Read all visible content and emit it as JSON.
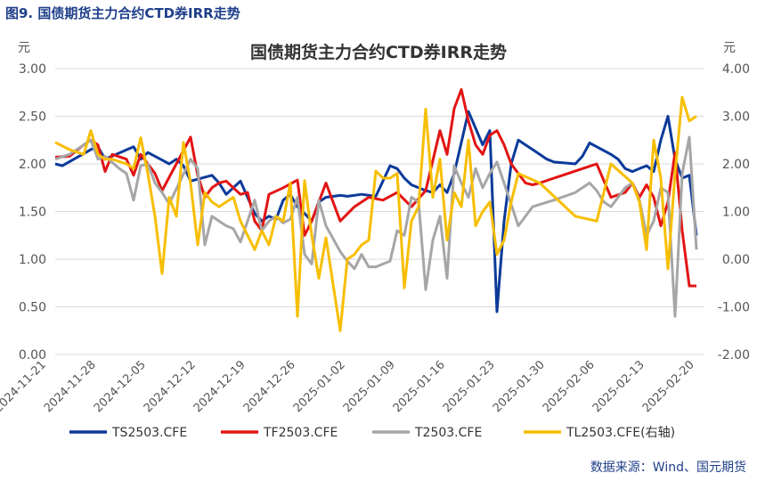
{
  "caption": "图9. 国债期货主力合约CTD券IRR走势",
  "source": "数据来源：Wind、国元期货",
  "chart_data": {
    "type": "line",
    "title": "国债期货主力合约CTD券IRR走势",
    "ylabel_left": "元",
    "ylabel_right": "元",
    "ylim_left": [
      0,
      3
    ],
    "ylim_right": [
      -2,
      4
    ],
    "yticks_left": [
      "0.00",
      "0.50",
      "1.00",
      "1.50",
      "2.00",
      "2.50",
      "3.00"
    ],
    "yticks_right": [
      "-2.00",
      "-1.00",
      "0.00",
      "1.00",
      "2.00",
      "3.00",
      "4.00"
    ],
    "xticks": [
      "2024-11-21",
      "2024-11-28",
      "2024-12-05",
      "2024-12-12",
      "2024-12-19",
      "2024-12-26",
      "2025-01-02",
      "2025-01-09",
      "2025-01-16",
      "2025-01-23",
      "2025-01-30",
      "2025-02-06",
      "2025-02-13",
      "2025-02-20"
    ],
    "x_range": [
      0,
      91
    ],
    "legend_position": "bottom",
    "series": [
      {
        "name": "TS2503.CFE",
        "color": "#0b3a9a",
        "axis": "left",
        "x": [
          0,
          1,
          5,
          6,
          7,
          11,
          12,
          13,
          15,
          16,
          17,
          18,
          19,
          22,
          23,
          24,
          26,
          27,
          28,
          29,
          30,
          31,
          32,
          33,
          34,
          35,
          36,
          37,
          38,
          40,
          41,
          42,
          43,
          45,
          47,
          48,
          49,
          50,
          51,
          52,
          53,
          54,
          55,
          56,
          58,
          60,
          61,
          62,
          63,
          64,
          65,
          66,
          67,
          68,
          69,
          70,
          73,
          74,
          75,
          78,
          79,
          80,
          81,
          82,
          83,
          84,
          85,
          86,
          87,
          88,
          89,
          90
        ],
        "y": [
          2.0,
          1.98,
          2.15,
          2.18,
          2.05,
          2.18,
          2.05,
          2.12,
          2.04,
          2.0,
          2.05,
          1.98,
          1.82,
          1.88,
          1.8,
          1.68,
          1.82,
          1.65,
          1.48,
          1.4,
          1.45,
          1.42,
          1.62,
          1.68,
          1.55,
          1.48,
          1.4,
          1.6,
          1.65,
          1.67,
          1.66,
          1.67,
          1.68,
          1.66,
          1.98,
          1.95,
          1.85,
          1.78,
          1.75,
          1.72,
          1.7,
          1.78,
          1.7,
          1.9,
          2.55,
          2.2,
          2.35,
          0.45,
          1.4,
          2.0,
          2.25,
          2.2,
          2.15,
          2.1,
          2.05,
          2.02,
          2.0,
          2.08,
          2.22,
          2.1,
          2.05,
          1.95,
          1.92,
          1.95,
          1.98,
          1.92,
          2.25,
          2.5,
          2.05,
          1.85,
          1.88,
          1.25
        ]
      },
      {
        "name": "TF2503.CFE",
        "color": "#e31414",
        "axis": "left",
        "x": [
          0,
          2,
          4,
          5,
          6,
          7,
          8,
          10,
          11,
          12,
          14,
          15,
          19,
          20,
          21,
          22,
          23,
          24,
          25,
          26,
          27,
          28,
          29,
          30,
          32,
          34,
          35,
          36,
          38,
          40,
          42,
          44,
          46,
          48,
          50,
          52,
          54,
          55,
          56,
          57,
          58,
          59,
          60,
          61,
          62,
          63,
          64,
          66,
          67,
          68,
          70,
          72,
          74,
          76,
          78,
          80,
          81,
          82,
          83,
          84,
          85,
          86,
          87,
          88,
          89,
          90
        ],
        "y": [
          2.07,
          2.08,
          2.2,
          2.25,
          2.2,
          1.92,
          2.1,
          2.05,
          1.88,
          2.1,
          1.9,
          1.72,
          2.28,
          1.88,
          1.65,
          1.75,
          1.8,
          1.82,
          1.75,
          1.68,
          1.7,
          1.4,
          1.3,
          1.68,
          1.75,
          1.83,
          1.25,
          1.4,
          1.8,
          1.4,
          1.55,
          1.65,
          1.62,
          1.7,
          1.55,
          1.72,
          2.35,
          2.1,
          2.58,
          2.78,
          2.45,
          2.2,
          2.1,
          2.3,
          2.35,
          2.2,
          2.0,
          1.8,
          1.78,
          1.8,
          1.85,
          1.9,
          1.95,
          2.0,
          1.65,
          1.7,
          1.8,
          1.65,
          1.78,
          1.65,
          1.35,
          1.6,
          2.12,
          1.3,
          0.72,
          0.72
        ]
      },
      {
        "name": "T2503.CFE",
        "color": "#a6a6a6",
        "axis": "left",
        "x": [
          0,
          2,
          4,
          5,
          6,
          7,
          9,
          10,
          11,
          12,
          13,
          14,
          15,
          16,
          19,
          20,
          21,
          22,
          23,
          24,
          25,
          26,
          28,
          29,
          30,
          31,
          32,
          33,
          34,
          35,
          36,
          37,
          38,
          40,
          41,
          42,
          43,
          44,
          45,
          46,
          47,
          48,
          49,
          50,
          51,
          52,
          53,
          54,
          55,
          56,
          57,
          58,
          59,
          60,
          61,
          62,
          63,
          65,
          67,
          70,
          73,
          75,
          76,
          77,
          78,
          79,
          80,
          81,
          82,
          83,
          84,
          85,
          86,
          87,
          88,
          89,
          90
        ],
        "y": [
          2.05,
          2.1,
          2.2,
          2.25,
          2.05,
          2.08,
          1.95,
          1.9,
          1.62,
          1.98,
          2.0,
          1.8,
          1.7,
          1.58,
          2.05,
          1.95,
          1.15,
          1.45,
          1.4,
          1.35,
          1.32,
          1.18,
          1.62,
          1.3,
          1.4,
          1.45,
          1.38,
          1.42,
          1.65,
          1.05,
          0.95,
          1.62,
          1.35,
          1.08,
          0.98,
          0.9,
          1.05,
          0.92,
          0.92,
          0.95,
          0.98,
          1.3,
          1.25,
          1.65,
          1.6,
          0.68,
          1.2,
          1.45,
          0.8,
          1.98,
          1.8,
          1.65,
          1.95,
          1.75,
          1.9,
          2.02,
          1.8,
          1.35,
          1.55,
          1.62,
          1.7,
          1.8,
          1.72,
          1.6,
          1.55,
          1.65,
          1.75,
          1.8,
          1.62,
          1.25,
          1.4,
          1.75,
          1.7,
          0.4,
          1.9,
          2.28,
          1.1
        ]
      },
      {
        "name": "TL2503.CFE(右轴)",
        "color": "#f7be00",
        "axis": "right",
        "x": [
          0,
          2,
          4,
          5,
          6,
          7,
          8,
          10,
          11,
          12,
          13,
          14,
          15,
          16,
          17,
          18,
          19,
          20,
          21,
          22,
          23,
          24,
          25,
          26,
          28,
          29,
          30,
          31,
          32,
          33,
          34,
          35,
          36,
          37,
          38,
          40,
          41,
          42,
          43,
          44,
          45,
          46,
          47,
          48,
          49,
          50,
          51,
          52,
          53,
          54,
          55,
          56,
          57,
          58,
          59,
          60,
          61,
          62,
          63,
          64,
          65,
          68,
          73,
          76,
          78,
          81,
          82,
          83,
          84,
          85,
          86,
          87,
          88,
          89,
          90
        ],
        "y": [
          2.45,
          2.3,
          2.2,
          2.7,
          2.2,
          2.1,
          2.1,
          2.0,
          1.9,
          2.55,
          1.8,
          0.9,
          -0.3,
          1.3,
          0.9,
          2.45,
          1.6,
          0.3,
          1.4,
          1.2,
          1.1,
          1.2,
          1.3,
          0.8,
          0.2,
          0.6,
          0.3,
          0.9,
          0.8,
          1.6,
          -1.2,
          1.65,
          0.5,
          -0.4,
          0.45,
          -1.5,
          0.0,
          0.1,
          0.3,
          0.4,
          1.85,
          1.7,
          1.7,
          1.8,
          -0.6,
          0.8,
          1.1,
          3.15,
          1.3,
          2.1,
          0.4,
          1.4,
          1.1,
          2.5,
          0.7,
          1.0,
          1.2,
          0.1,
          0.4,
          1.2,
          1.8,
          1.6,
          0.9,
          0.8,
          2.0,
          1.6,
          1.2,
          0.2,
          2.5,
          1.7,
          -0.2,
          1.8,
          3.4,
          2.9,
          3.0
        ]
      }
    ]
  }
}
